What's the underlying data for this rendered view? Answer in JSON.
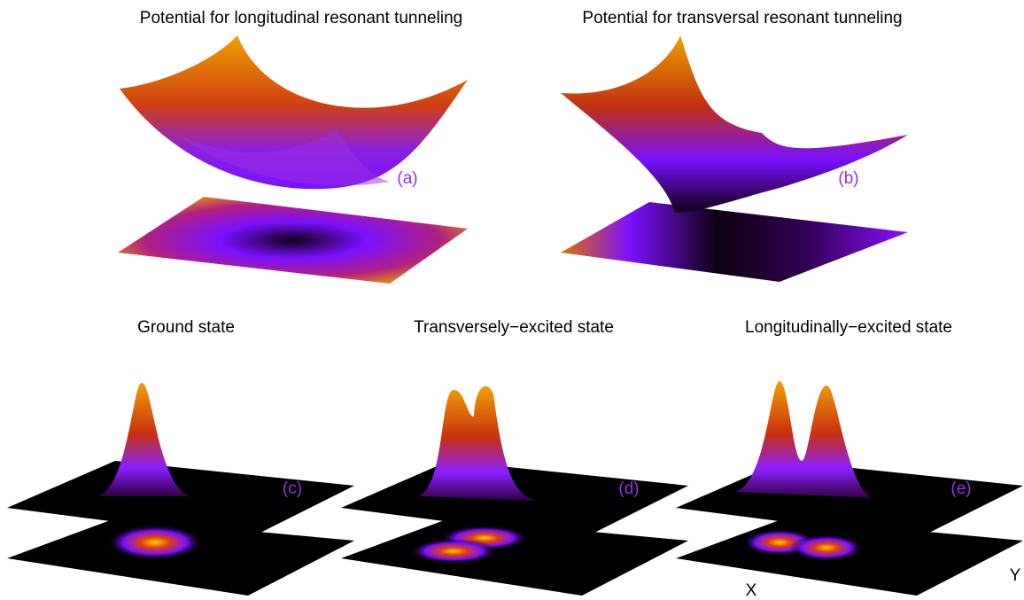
{
  "panels": [
    {
      "title": "Potential for longitudinal resonant tunneling",
      "label": "(a)"
    },
    {
      "title": "Potential for transversal resonant tunneling",
      "label": "(b)"
    },
    {
      "title": "Ground state",
      "label": "(c)"
    },
    {
      "title": "Transversely−excited state",
      "label": "(d)"
    },
    {
      "title": "Longitudinally−excited state",
      "label": "(e)"
    }
  ],
  "axes": {
    "x": "X",
    "y": "Y"
  }
}
